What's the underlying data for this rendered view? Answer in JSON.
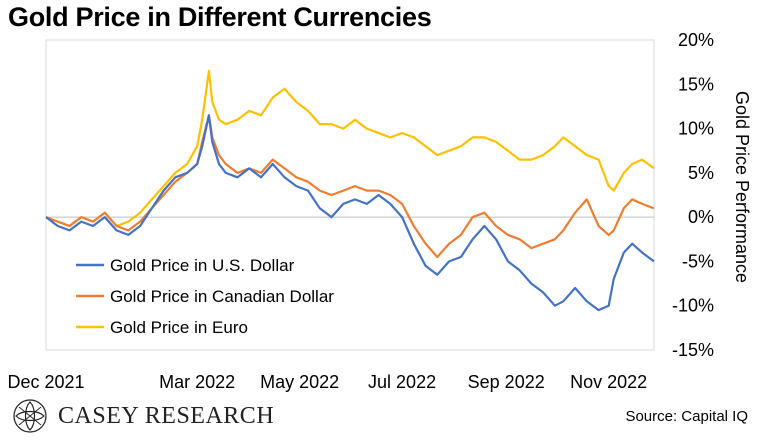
{
  "brand": {
    "logo_text": "CASEY RESEARCH"
  },
  "source": "Source: Capital IQ",
  "chart_data": {
    "type": "line",
    "title": "Gold Price in Different Currencies",
    "ylabel": "Gold Price Performance",
    "xlabel": "",
    "ylim": [
      -15,
      20
    ],
    "y_ticks": [
      20,
      15,
      10,
      5,
      0,
      -5,
      -10,
      -15
    ],
    "y_tick_labels": [
      "20%",
      "15%",
      "10%",
      "5%",
      "0%",
      "-5%",
      "-10%",
      "-15%"
    ],
    "x_tick_labels": [
      "Dec 2021",
      "Mar 2022",
      "May 2022",
      "Jul 2022",
      "Sep 2022",
      "Nov 2022"
    ],
    "x_ticks": [
      "2021-12-01",
      "2022-03-01",
      "2022-05-01",
      "2022-07-01",
      "2022-09-01",
      "2022-11-01"
    ],
    "x_range": [
      "2021-12-01",
      "2022-11-28"
    ],
    "grid": false,
    "legend_position": "bottom-left",
    "series": [
      {
        "name": "Gold Price in U.S. Dollar",
        "color": "#4472C4",
        "points": [
          [
            "2021-12-01",
            0
          ],
          [
            "2021-12-08",
            -1
          ],
          [
            "2021-12-15",
            -1.5
          ],
          [
            "2021-12-22",
            -0.5
          ],
          [
            "2021-12-29",
            -1
          ],
          [
            "2022-01-05",
            0
          ],
          [
            "2022-01-12",
            -1.5
          ],
          [
            "2022-01-19",
            -2
          ],
          [
            "2022-01-26",
            -1
          ],
          [
            "2022-02-02",
            1
          ],
          [
            "2022-02-09",
            3
          ],
          [
            "2022-02-16",
            4.5
          ],
          [
            "2022-02-23",
            5
          ],
          [
            "2022-03-01",
            6
          ],
          [
            "2022-03-04",
            8
          ],
          [
            "2022-03-08",
            11.5
          ],
          [
            "2022-03-10",
            8.5
          ],
          [
            "2022-03-14",
            6
          ],
          [
            "2022-03-18",
            5
          ],
          [
            "2022-03-25",
            4.5
          ],
          [
            "2022-04-01",
            5.5
          ],
          [
            "2022-04-08",
            4.5
          ],
          [
            "2022-04-15",
            6
          ],
          [
            "2022-04-22",
            4.5
          ],
          [
            "2022-04-29",
            3.5
          ],
          [
            "2022-05-06",
            3
          ],
          [
            "2022-05-13",
            1
          ],
          [
            "2022-05-20",
            0
          ],
          [
            "2022-05-27",
            1.5
          ],
          [
            "2022-06-03",
            2
          ],
          [
            "2022-06-10",
            1.5
          ],
          [
            "2022-06-17",
            2.5
          ],
          [
            "2022-06-24",
            1.5
          ],
          [
            "2022-07-01",
            0
          ],
          [
            "2022-07-08",
            -3
          ],
          [
            "2022-07-15",
            -5.5
          ],
          [
            "2022-07-22",
            -6.5
          ],
          [
            "2022-07-29",
            -5
          ],
          [
            "2022-08-05",
            -4.5
          ],
          [
            "2022-08-12",
            -2.5
          ],
          [
            "2022-08-19",
            -1
          ],
          [
            "2022-08-26",
            -2.5
          ],
          [
            "2022-09-02",
            -5
          ],
          [
            "2022-09-09",
            -6
          ],
          [
            "2022-09-16",
            -7.5
          ],
          [
            "2022-09-23",
            -8.5
          ],
          [
            "2022-09-30",
            -10
          ],
          [
            "2022-10-05",
            -9.5
          ],
          [
            "2022-10-12",
            -8
          ],
          [
            "2022-10-19",
            -9.5
          ],
          [
            "2022-10-26",
            -10.5
          ],
          [
            "2022-11-01",
            -10
          ],
          [
            "2022-11-04",
            -7
          ],
          [
            "2022-11-10",
            -4
          ],
          [
            "2022-11-15",
            -3
          ],
          [
            "2022-11-21",
            -4
          ],
          [
            "2022-11-28",
            -5
          ]
        ]
      },
      {
        "name": "Gold Price in Canadian Dollar",
        "color": "#ED7D31",
        "points": [
          [
            "2021-12-01",
            0
          ],
          [
            "2021-12-08",
            -0.5
          ],
          [
            "2021-12-15",
            -1
          ],
          [
            "2021-12-22",
            0
          ],
          [
            "2021-12-29",
            -0.5
          ],
          [
            "2022-01-05",
            0.5
          ],
          [
            "2022-01-12",
            -1
          ],
          [
            "2022-01-19",
            -1.5
          ],
          [
            "2022-01-26",
            -0.5
          ],
          [
            "2022-02-02",
            1
          ],
          [
            "2022-02-09",
            2.5
          ],
          [
            "2022-02-16",
            4
          ],
          [
            "2022-02-23",
            5
          ],
          [
            "2022-03-01",
            6
          ],
          [
            "2022-03-04",
            8.5
          ],
          [
            "2022-03-08",
            11.5
          ],
          [
            "2022-03-10",
            9
          ],
          [
            "2022-03-14",
            7
          ],
          [
            "2022-03-18",
            6
          ],
          [
            "2022-03-25",
            5
          ],
          [
            "2022-04-01",
            5.5
          ],
          [
            "2022-04-08",
            5
          ],
          [
            "2022-04-15",
            6.5
          ],
          [
            "2022-04-22",
            5.5
          ],
          [
            "2022-04-29",
            4.5
          ],
          [
            "2022-05-06",
            4
          ],
          [
            "2022-05-13",
            3
          ],
          [
            "2022-05-20",
            2.5
          ],
          [
            "2022-05-27",
            3
          ],
          [
            "2022-06-03",
            3.5
          ],
          [
            "2022-06-10",
            3
          ],
          [
            "2022-06-17",
            3
          ],
          [
            "2022-06-24",
            2.5
          ],
          [
            "2022-07-01",
            1.5
          ],
          [
            "2022-07-08",
            -1
          ],
          [
            "2022-07-15",
            -3
          ],
          [
            "2022-07-22",
            -4.5
          ],
          [
            "2022-07-29",
            -3
          ],
          [
            "2022-08-05",
            -2
          ],
          [
            "2022-08-12",
            0
          ],
          [
            "2022-08-19",
            0.5
          ],
          [
            "2022-08-26",
            -1
          ],
          [
            "2022-09-02",
            -2
          ],
          [
            "2022-09-09",
            -2.5
          ],
          [
            "2022-09-16",
            -3.5
          ],
          [
            "2022-09-23",
            -3
          ],
          [
            "2022-09-30",
            -2.5
          ],
          [
            "2022-10-05",
            -1.5
          ],
          [
            "2022-10-12",
            0.5
          ],
          [
            "2022-10-19",
            2
          ],
          [
            "2022-10-26",
            -1
          ],
          [
            "2022-11-01",
            -2
          ],
          [
            "2022-11-04",
            -1.5
          ],
          [
            "2022-11-10",
            1
          ],
          [
            "2022-11-15",
            2
          ],
          [
            "2022-11-21",
            1.5
          ],
          [
            "2022-11-28",
            1
          ]
        ]
      },
      {
        "name": "Gold Price in Euro",
        "color": "#FFC000",
        "points": [
          [
            "2021-12-01",
            0
          ],
          [
            "2021-12-08",
            -0.5
          ],
          [
            "2021-12-15",
            -1
          ],
          [
            "2021-12-22",
            0
          ],
          [
            "2021-12-29",
            -0.5
          ],
          [
            "2022-01-05",
            0.5
          ],
          [
            "2022-01-12",
            -1
          ],
          [
            "2022-01-19",
            -0.5
          ],
          [
            "2022-01-26",
            0.5
          ],
          [
            "2022-02-02",
            2
          ],
          [
            "2022-02-09",
            3.5
          ],
          [
            "2022-02-16",
            5
          ],
          [
            "2022-02-23",
            6
          ],
          [
            "2022-03-01",
            8
          ],
          [
            "2022-03-04",
            11
          ],
          [
            "2022-03-08",
            16.5
          ],
          [
            "2022-03-10",
            13
          ],
          [
            "2022-03-14",
            11
          ],
          [
            "2022-03-18",
            10.5
          ],
          [
            "2022-03-25",
            11
          ],
          [
            "2022-04-01",
            12
          ],
          [
            "2022-04-08",
            11.5
          ],
          [
            "2022-04-15",
            13.5
          ],
          [
            "2022-04-22",
            14.5
          ],
          [
            "2022-04-29",
            13
          ],
          [
            "2022-05-06",
            12
          ],
          [
            "2022-05-13",
            10.5
          ],
          [
            "2022-05-20",
            10.5
          ],
          [
            "2022-05-27",
            10
          ],
          [
            "2022-06-03",
            11
          ],
          [
            "2022-06-10",
            10
          ],
          [
            "2022-06-17",
            9.5
          ],
          [
            "2022-06-24",
            9
          ],
          [
            "2022-07-01",
            9.5
          ],
          [
            "2022-07-08",
            9
          ],
          [
            "2022-07-15",
            8
          ],
          [
            "2022-07-22",
            7
          ],
          [
            "2022-07-29",
            7.5
          ],
          [
            "2022-08-05",
            8
          ],
          [
            "2022-08-12",
            9
          ],
          [
            "2022-08-19",
            9
          ],
          [
            "2022-08-26",
            8.5
          ],
          [
            "2022-09-02",
            7.5
          ],
          [
            "2022-09-09",
            6.5
          ],
          [
            "2022-09-16",
            6.5
          ],
          [
            "2022-09-23",
            7
          ],
          [
            "2022-09-30",
            8
          ],
          [
            "2022-10-05",
            9
          ],
          [
            "2022-10-12",
            8
          ],
          [
            "2022-10-19",
            7
          ],
          [
            "2022-10-26",
            6.5
          ],
          [
            "2022-11-01",
            3.5
          ],
          [
            "2022-11-04",
            3
          ],
          [
            "2022-11-10",
            5
          ],
          [
            "2022-11-15",
            6
          ],
          [
            "2022-11-21",
            6.5
          ],
          [
            "2022-11-28",
            5.5
          ]
        ]
      }
    ]
  }
}
